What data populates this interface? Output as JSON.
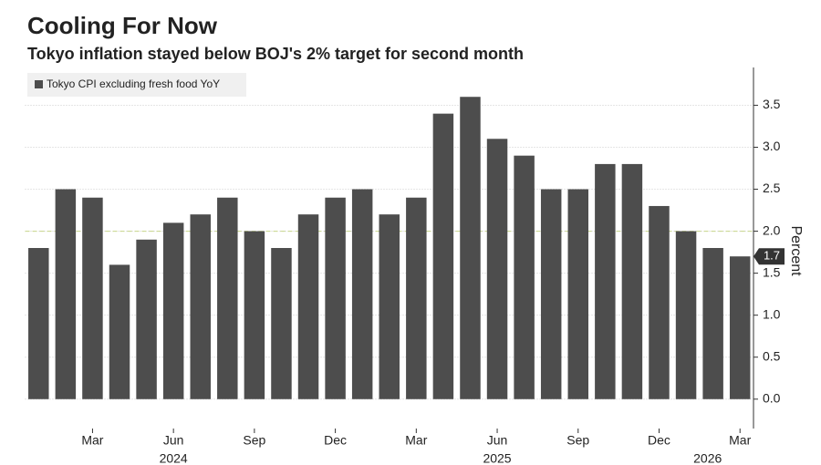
{
  "chart_data": {
    "type": "bar",
    "title": "Cooling For Now",
    "subtitle": "Tokyo inflation stayed below BOJ's 2% target for second month",
    "y_axis_label": "Percent",
    "categories": [
      null,
      null,
      "Mar",
      null,
      null,
      "Jun",
      null,
      null,
      "Sep",
      null,
      null,
      "Dec",
      null,
      null,
      "Mar",
      null,
      null,
      "Jun",
      null,
      null,
      "Sep",
      null,
      null,
      "Dec",
      null,
      null,
      "Mar"
    ],
    "years": [
      "2024",
      "2025",
      "2026"
    ],
    "series": [
      {
        "name": "Tokyo CPI excluding fresh food YoY",
        "color": "#4d4d4d",
        "values": [
          1.8,
          2.5,
          2.4,
          1.6,
          1.9,
          2.1,
          2.2,
          2.4,
          2.0,
          1.8,
          2.2,
          2.4,
          2.5,
          2.2,
          2.4,
          3.4,
          3.6,
          3.1,
          2.9,
          2.5,
          2.5,
          2.8,
          2.8,
          2.3,
          2.0,
          1.8,
          1.7
        ]
      }
    ],
    "ylim": [
      -0.35,
      3.95
    ],
    "yticks": [
      {
        "value": 0,
        "label": "0.0"
      },
      0.5,
      {
        "value": 1,
        "label": "1.0"
      },
      1.5,
      {
        "value": 2,
        "label": "2.0"
      },
      2.5,
      {
        "value": 3,
        "label": "3.0"
      },
      3.5
    ],
    "reference_line": 2,
    "reference_color": "#c8d68a",
    "grid": true
  }
}
